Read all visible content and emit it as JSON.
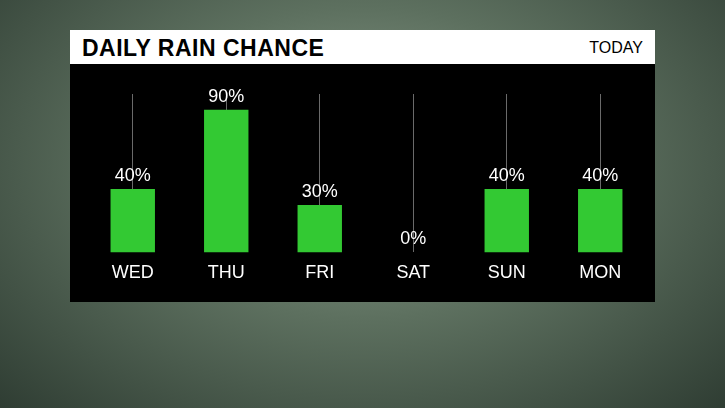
{
  "chart_data": {
    "type": "bar",
    "title": "DAILY RAIN CHANCE",
    "subtitle": "TODAY",
    "categories": [
      "WED",
      "THU",
      "FRI",
      "SAT",
      "SUN",
      "MON"
    ],
    "values": [
      40,
      90,
      30,
      0,
      40,
      40
    ],
    "value_labels": [
      "40%",
      "90%",
      "30%",
      "0%",
      "40%",
      "40%"
    ],
    "data_labels": true,
    "color": "#33c933",
    "ylim": [
      0,
      100
    ],
    "grid": true,
    "tick_labels": "x"
  }
}
